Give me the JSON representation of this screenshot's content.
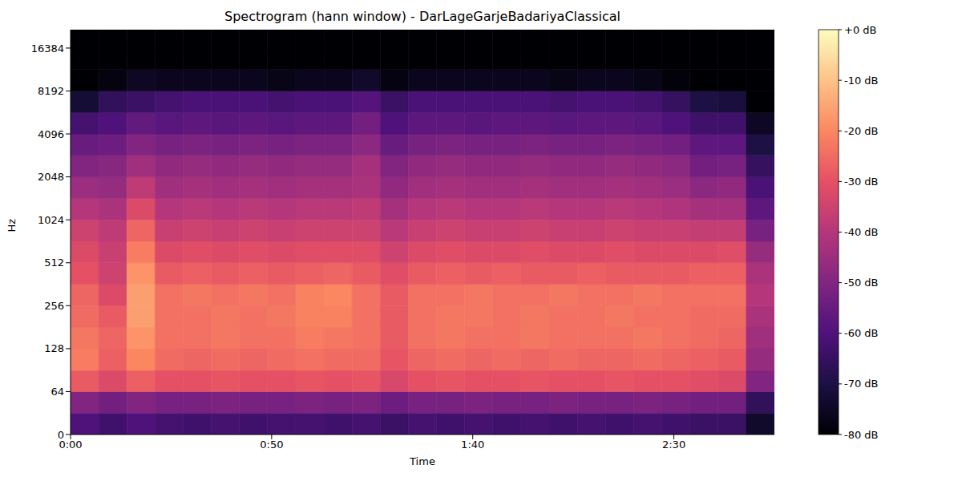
{
  "chart_data": {
    "type": "heatmap",
    "title": "Spectrogram (hann window) - DarLageGarjeBadariyaClassical",
    "x_label": "Time",
    "y_label": "Hz",
    "xlim": [
      0,
      175
    ],
    "xticks": [
      {
        "value": 0,
        "label": "0:00"
      },
      {
        "value": 50,
        "label": "0:50"
      },
      {
        "value": 100,
        "label": "1:40"
      },
      {
        "value": 150,
        "label": "2:30"
      }
    ],
    "ylim": [
      0,
      22050
    ],
    "yticks": [
      0,
      64,
      128,
      256,
      512,
      1024,
      2048,
      4096,
      8192,
      16384
    ],
    "log": "y",
    "time_edges": [
      0,
      7,
      14,
      21,
      28,
      35,
      42,
      49,
      56,
      63,
      70,
      77,
      84,
      91,
      98,
      105,
      112,
      119,
      126,
      133,
      140,
      147,
      154,
      161,
      168,
      175
    ],
    "freq_edges": [
      0,
      32,
      64,
      90,
      128,
      181,
      256,
      362,
      512,
      724,
      1024,
      1448,
      2048,
      2896,
      4096,
      5793,
      8192,
      11585,
      16384,
      22050
    ],
    "cells": [
      [
        -60,
        -63,
        -60,
        -62,
        -63,
        -62,
        -63,
        -62,
        -62,
        -63,
        -62,
        -64,
        -62,
        -63,
        -62,
        -63,
        -62,
        -63,
        -62,
        -63,
        -62,
        -63,
        -64,
        -64,
        -74
      ],
      [
        -50,
        -53,
        -50,
        -52,
        -52,
        -51,
        -52,
        -52,
        -51,
        -52,
        -51,
        -54,
        -52,
        -52,
        -51,
        -52,
        -52,
        -51,
        -52,
        -52,
        -51,
        -52,
        -53,
        -53,
        -66
      ],
      [
        -28,
        -32,
        -27,
        -30,
        -30,
        -29,
        -30,
        -30,
        -29,
        -30,
        -29,
        -33,
        -30,
        -29,
        -30,
        -30,
        -29,
        -30,
        -30,
        -29,
        -30,
        -30,
        -31,
        -32,
        -50
      ],
      [
        -22,
        -27,
        -20,
        -25,
        -26,
        -25,
        -26,
        -25,
        -24,
        -25,
        -25,
        -29,
        -26,
        -25,
        -26,
        -25,
        -26,
        -25,
        -26,
        -26,
        -25,
        -26,
        -27,
        -28,
        -46
      ],
      [
        -23,
        -26,
        -18,
        -24,
        -24,
        -23,
        -24,
        -24,
        -22,
        -23,
        -24,
        -28,
        -24,
        -23,
        -24,
        -24,
        -23,
        -24,
        -24,
        -24,
        -23,
        -24,
        -25,
        -26,
        -44
      ],
      [
        -25,
        -28,
        -16,
        -24,
        -24,
        -23,
        -24,
        -23,
        -21,
        -21,
        -24,
        -28,
        -24,
        -23,
        -23,
        -24,
        -23,
        -24,
        -24,
        -23,
        -24,
        -24,
        -25,
        -25,
        -42
      ],
      [
        -26,
        -32,
        -16,
        -24,
        -23,
        -24,
        -23,
        -24,
        -21,
        -20,
        -24,
        -28,
        -24,
        -24,
        -23,
        -24,
        -24,
        -23,
        -24,
        -24,
        -23,
        -24,
        -24,
        -24,
        -40
      ],
      [
        -30,
        -35,
        -18,
        -28,
        -27,
        -28,
        -27,
        -28,
        -27,
        -26,
        -28,
        -31,
        -28,
        -27,
        -28,
        -27,
        -28,
        -28,
        -27,
        -28,
        -28,
        -28,
        -27,
        -27,
        -42
      ],
      [
        -32,
        -36,
        -22,
        -32,
        -31,
        -32,
        -31,
        -32,
        -31,
        -31,
        -31,
        -35,
        -32,
        -31,
        -32,
        -32,
        -31,
        -32,
        -32,
        -31,
        -32,
        -32,
        -32,
        -31,
        -46
      ],
      [
        -35,
        -38,
        -26,
        -36,
        -35,
        -36,
        -35,
        -36,
        -35,
        -35,
        -35,
        -39,
        -36,
        -35,
        -36,
        -36,
        -35,
        -36,
        -36,
        -35,
        -36,
        -36,
        -37,
        -37,
        -52
      ],
      [
        -40,
        -42,
        -32,
        -40,
        -39,
        -40,
        -39,
        -40,
        -39,
        -39,
        -38,
        -43,
        -40,
        -39,
        -40,
        -40,
        -39,
        -40,
        -40,
        -39,
        -40,
        -41,
        -43,
        -43,
        -57
      ],
      [
        -45,
        -46,
        -38,
        -44,
        -43,
        -44,
        -43,
        -44,
        -43,
        -43,
        -42,
        -47,
        -44,
        -43,
        -44,
        -44,
        -43,
        -44,
        -44,
        -43,
        -44,
        -45,
        -48,
        -47,
        -61
      ],
      [
        -50,
        -49,
        -44,
        -47,
        -46,
        -47,
        -46,
        -47,
        -46,
        -46,
        -43,
        -50,
        -47,
        -46,
        -47,
        -47,
        -46,
        -47,
        -47,
        -46,
        -47,
        -48,
        -53,
        -52,
        -65
      ],
      [
        -55,
        -54,
        -50,
        -52,
        -51,
        -52,
        -51,
        -52,
        -51,
        -51,
        -48,
        -55,
        -52,
        -51,
        -52,
        -52,
        -51,
        -52,
        -52,
        -51,
        -52,
        -53,
        -57,
        -57,
        -70
      ],
      [
        -62,
        -60,
        -56,
        -58,
        -57,
        -58,
        -57,
        -58,
        -57,
        -57,
        -53,
        -60,
        -57,
        -57,
        -58,
        -57,
        -57,
        -58,
        -57,
        -57,
        -58,
        -60,
        -63,
        -63,
        -75
      ],
      [
        -72,
        -66,
        -64,
        -62,
        -61,
        -61,
        -61,
        -62,
        -61,
        -61,
        -59,
        -64,
        -61,
        -61,
        -61,
        -61,
        -61,
        -62,
        -61,
        -61,
        -62,
        -65,
        -70,
        -71,
        -80
      ],
      [
        -80,
        -78,
        -75,
        -76,
        -76,
        -76,
        -76,
        -77,
        -76,
        -76,
        -74,
        -78,
        -76,
        -76,
        -76,
        -76,
        -76,
        -77,
        -76,
        -76,
        -77,
        -79,
        -80,
        -80,
        -80
      ],
      [
        -80,
        -80,
        -80,
        -80,
        -80,
        -80,
        -80,
        -80,
        -80,
        -80,
        -80,
        -80,
        -80,
        -80,
        -80,
        -80,
        -80,
        -80,
        -80,
        -80,
        -80,
        -80,
        -80,
        -80,
        -80
      ],
      [
        -80,
        -80,
        -80,
        -80,
        -80,
        -80,
        -80,
        -80,
        -80,
        -80,
        -80,
        -80,
        -80,
        -80,
        -80,
        -80,
        -80,
        -80,
        -80,
        -80,
        -80,
        -80,
        -80,
        -80,
        -80
      ]
    ],
    "colorbar": {
      "lim": [
        -80,
        0
      ],
      "ticks": [
        {
          "value": 0,
          "label": "+0 dB"
        },
        {
          "value": -10,
          "label": "-10 dB"
        },
        {
          "value": -20,
          "label": "-20 dB"
        },
        {
          "value": -30,
          "label": "-30 dB"
        },
        {
          "value": -40,
          "label": "-40 dB"
        },
        {
          "value": -50,
          "label": "-50 dB"
        },
        {
          "value": -60,
          "label": "-60 dB"
        },
        {
          "value": -70,
          "label": "-70 dB"
        },
        {
          "value": -80,
          "label": "-80 dB"
        }
      ]
    }
  }
}
